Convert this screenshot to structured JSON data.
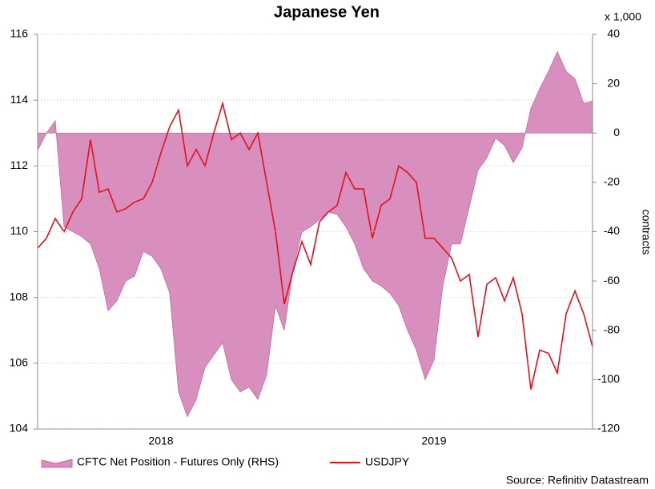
{
  "chart_data": {
    "type": "line",
    "title": "Japanese Yen",
    "y2_label": "contracts",
    "y2_unit_note": "x 1,000",
    "source": "Source: Refinitiv Datastream",
    "categories": [
      null,
      null,
      null,
      null,
      null,
      null,
      null,
      null,
      null,
      null,
      null,
      null,
      null,
      null,
      "2018",
      null,
      null,
      null,
      null,
      null,
      null,
      null,
      null,
      null,
      null,
      null,
      null,
      null,
      null,
      null,
      null,
      null,
      null,
      null,
      null,
      null,
      null,
      null,
      null,
      null,
      null,
      null,
      null,
      null,
      null,
      "2019",
      null,
      null,
      null,
      null,
      null,
      null,
      null,
      null,
      null,
      null,
      null,
      null,
      null,
      null,
      null,
      null,
      null,
      null
    ],
    "ylim": [
      104,
      116
    ],
    "yticks": [
      104,
      106,
      108,
      110,
      112,
      114,
      116
    ],
    "y2lim": [
      -120,
      40
    ],
    "y2ticks": [
      -120,
      -100,
      -80,
      -60,
      -40,
      -20,
      0,
      20,
      40
    ],
    "grid": true,
    "series": [
      {
        "name": "CFTC Net Position - Futures Only (RHS)",
        "kind": "area",
        "axis": "y2",
        "color": "#d98fbd",
        "values": [
          -7,
          0,
          5,
          -38,
          -40,
          -42,
          -45,
          -55,
          -72,
          -68,
          -60,
          -58,
          -48,
          -50,
          -55,
          -65,
          -105,
          -115,
          -108,
          -95,
          -90,
          -85,
          -100,
          -105,
          -103,
          -108,
          -98,
          -70,
          -80,
          -55,
          -40,
          -38,
          -35,
          -32,
          -33,
          -38,
          -45,
          -55,
          -60,
          -62,
          -65,
          -70,
          -80,
          -88,
          -100,
          -92,
          -62,
          -45,
          -45,
          -30,
          -15,
          -10,
          -2,
          -5,
          -12,
          -6,
          10,
          18,
          25,
          33,
          25,
          22,
          12,
          13
        ]
      },
      {
        "name": "USDJPY",
        "kind": "line",
        "color": "#e3101c",
        "values": [
          109.5,
          109.8,
          110.4,
          110.0,
          110.6,
          111.0,
          112.8,
          111.2,
          111.3,
          110.6,
          110.7,
          110.9,
          111.0,
          111.5,
          112.4,
          113.2,
          113.7,
          112.0,
          112.5,
          112.0,
          113.0,
          113.9,
          112.8,
          113.0,
          112.5,
          113.0,
          111.5,
          110.0,
          107.8,
          108.8,
          109.7,
          109.0,
          110.3,
          110.6,
          110.8,
          111.8,
          111.3,
          111.3,
          109.8,
          110.8,
          111.0,
          112.0,
          111.8,
          111.5,
          109.8,
          109.8,
          109.5,
          109.2,
          108.5,
          108.7,
          106.8,
          108.4,
          108.6,
          107.9,
          108.6,
          107.5,
          105.2,
          106.4,
          106.3,
          105.7,
          107.5,
          108.2,
          107.5,
          106.5
        ]
      }
    ]
  }
}
